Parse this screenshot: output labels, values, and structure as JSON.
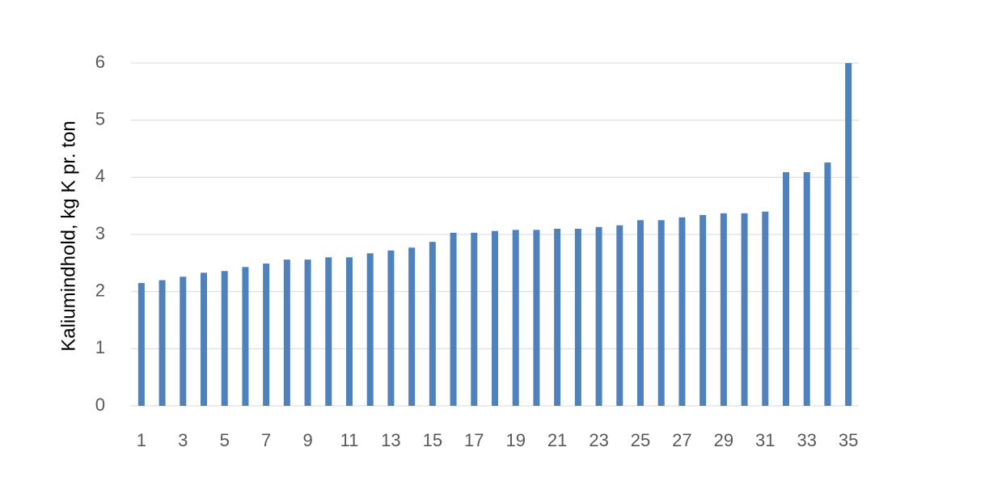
{
  "chart_data": {
    "type": "bar",
    "y_label": "Kaliumindhold, kg K pr. ton",
    "categories": [
      1,
      null,
      3,
      null,
      5,
      null,
      7,
      null,
      9,
      null,
      11,
      null,
      13,
      null,
      15,
      null,
      17,
      null,
      19,
      null,
      21,
      null,
      23,
      null,
      25,
      null,
      27,
      null,
      29,
      null,
      31,
      null,
      33,
      null,
      35
    ],
    "values": [
      2.15,
      2.2,
      2.26,
      2.33,
      2.36,
      2.43,
      2.49,
      2.56,
      2.56,
      2.6,
      2.6,
      2.67,
      2.72,
      2.77,
      2.87,
      3.03,
      3.03,
      3.06,
      3.08,
      3.08,
      3.1,
      3.1,
      3.13,
      3.16,
      3.25,
      3.25,
      3.3,
      3.34,
      3.37,
      3.37,
      3.4,
      4.09,
      4.09,
      4.26,
      6.0
    ],
    "color": "#4f81bd",
    "ylim": [
      0,
      6
    ],
    "yticks": [
      0,
      1,
      2,
      3,
      4,
      5,
      6
    ],
    "grid": true
  }
}
